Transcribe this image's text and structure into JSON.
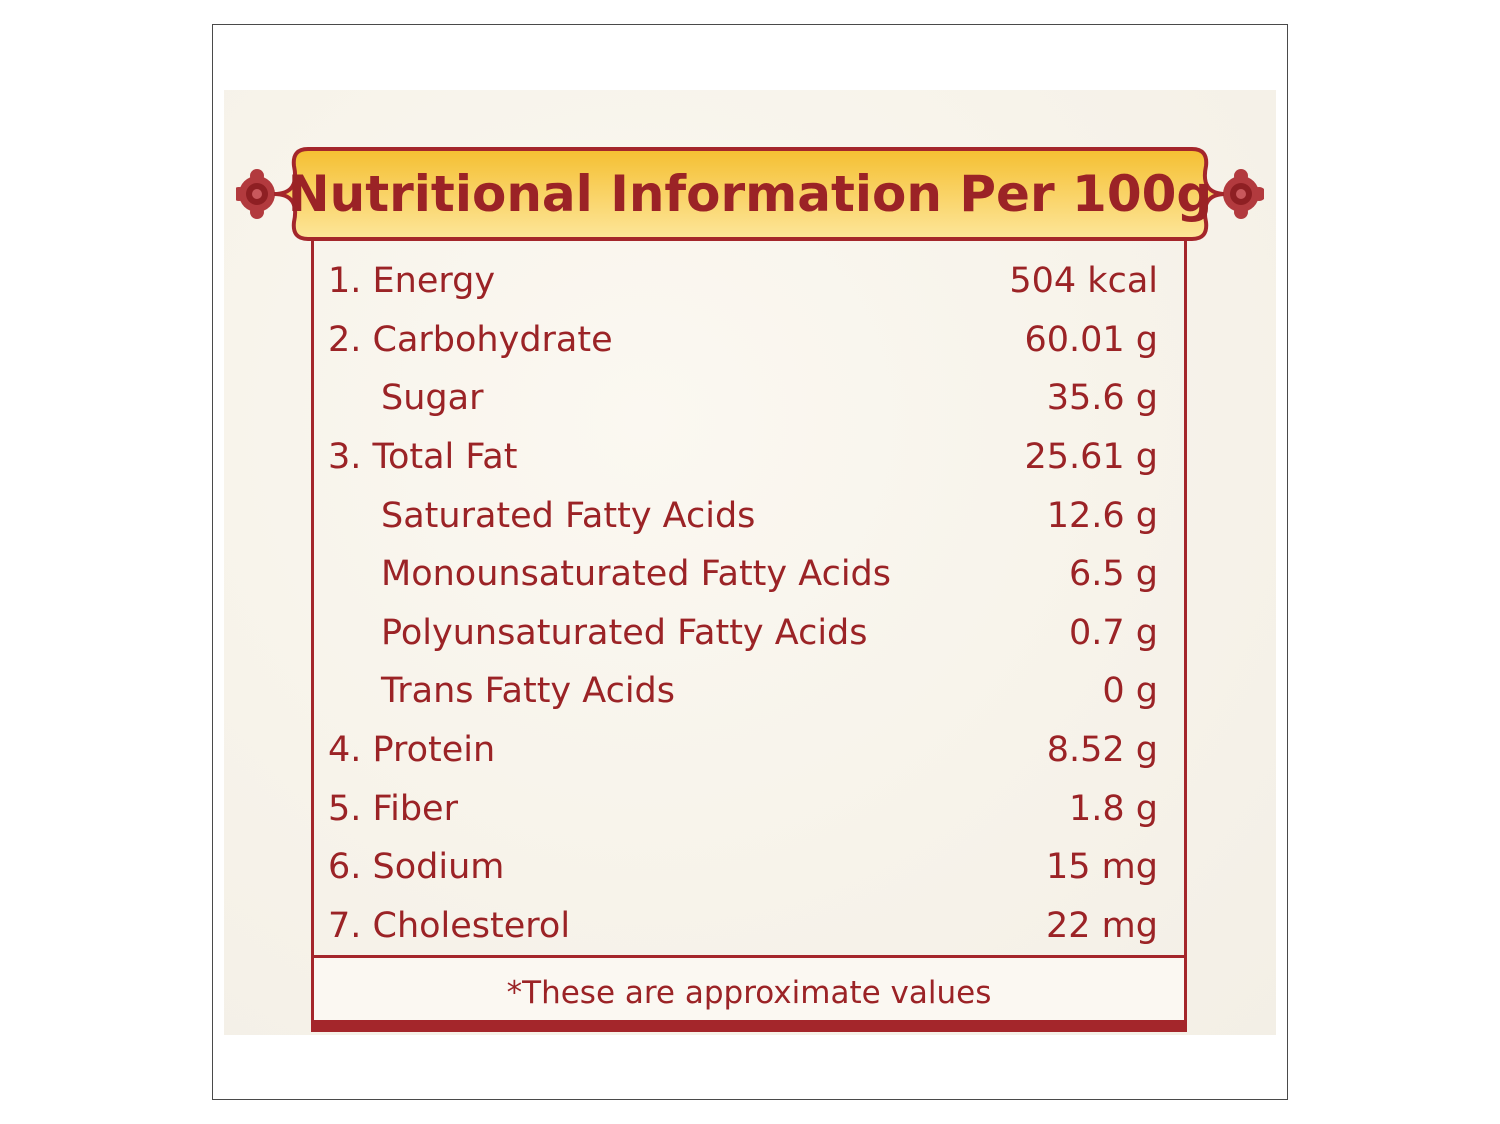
{
  "label": {
    "title": "Nutritional Information Per 100g",
    "rows": [
      {
        "name": "1. Energy",
        "value": "504 kcal",
        "sub": false
      },
      {
        "name": "2. Carbohydrate",
        "value": "60.01 g",
        "sub": false
      },
      {
        "name": "Sugar",
        "value": "35.6 g",
        "sub": true
      },
      {
        "name": "3. Total Fat",
        "value": "25.61 g",
        "sub": false
      },
      {
        "name": "Saturated Fatty Acids",
        "value": "12.6 g",
        "sub": true
      },
      {
        "name": "Monounsaturated Fatty Acids",
        "value": "6.5 g",
        "sub": true
      },
      {
        "name": "Polyunsaturated Fatty Acids",
        "value": "0.7 g",
        "sub": true
      },
      {
        "name": "Trans Fatty Acids",
        "value": "0 g",
        "sub": true
      },
      {
        "name": "4. Protein",
        "value": "8.52 g",
        "sub": false
      },
      {
        "name": "5. Fiber",
        "value": "1.8 g",
        "sub": false
      },
      {
        "name": "6. Sodium",
        "value": "15 mg",
        "sub": false
      },
      {
        "name": "7. Cholesterol",
        "value": "22 mg",
        "sub": false
      }
    ],
    "footnote": "*These are approximate values"
  },
  "colors": {
    "text": "#9b2326",
    "border": "#a4262b",
    "banner_fill_top": "#f5c53a",
    "banner_fill_bottom": "#fde394"
  },
  "icons": {
    "left_ornament": "flower-ornament-icon",
    "right_ornament": "flower-ornament-icon"
  }
}
